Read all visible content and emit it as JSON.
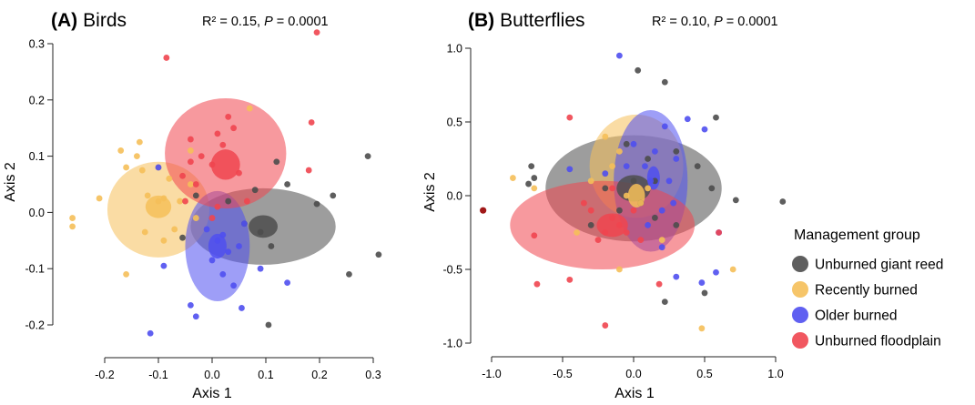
{
  "colors": {
    "Unburned giant reed": "#4d4d4d",
    "Recently burned": "#f5bf59",
    "Older burned": "#4f4ff0",
    "Unburned floodplain": "#f0454f"
  },
  "legend": {
    "title": "Management group",
    "items": [
      "Unburned giant reed",
      "Recently burned",
      "Older burned",
      "Unburned floodplain"
    ]
  },
  "chart_data": [
    {
      "type": "scatter",
      "panel_label": "(A)",
      "title": "Birds",
      "stat_r2": "R² = 0.15,",
      "stat_p_symbol": "P",
      "stat_p_value": " = 0.0001",
      "xlabel": "Axis 1",
      "ylabel": "Axis 2",
      "xlim": [
        -0.25,
        0.32
      ],
      "ylim": [
        -0.22,
        0.34
      ],
      "xticks": [
        -0.2,
        -0.1,
        0.0,
        0.1,
        0.2,
        0.3
      ],
      "xtick_labels": [
        "-0.2",
        "-0.1",
        "0.0",
        "0.1",
        "0.2",
        "0.3"
      ],
      "yticks": [
        -0.2,
        -0.1,
        0.0,
        0.1,
        0.2,
        0.3
      ],
      "ytick_labels": [
        "-0.2",
        "-0.1",
        "0.0",
        "0.1",
        "0.2",
        "0.3"
      ],
      "series": [
        {
          "name": "Unburned giant reed",
          "ellipse": {
            "cx": 0.095,
            "cy": -0.025,
            "rx": 0.135,
            "ry": 0.068
          },
          "centroid": {
            "cx": 0.095,
            "cy": -0.025,
            "rx": 0.027,
            "ry": 0.02
          },
          "points": [
            [
              0.29,
              0.1
            ],
            [
              0.225,
              0.03
            ],
            [
              0.31,
              -0.075
            ],
            [
              0.255,
              -0.11
            ],
            [
              0.105,
              -0.2
            ],
            [
              0.195,
              0.015
            ],
            [
              0.12,
              0.09
            ],
            [
              0.08,
              0.04
            ],
            [
              0.09,
              -0.035
            ],
            [
              0.14,
              0.05
            ],
            [
              0.06,
              -0.02
            ],
            [
              0.03,
              0.02
            ],
            [
              -0.03,
              0.03
            ],
            [
              0.11,
              -0.06
            ],
            [
              -0.055,
              -0.045
            ]
          ]
        },
        {
          "name": "Recently burned",
          "ellipse": {
            "cx": -0.1,
            "cy": 0.005,
            "rx": 0.095,
            "ry": 0.085
          },
          "centroid": {
            "cx": -0.1,
            "cy": 0.01,
            "rx": 0.024,
            "ry": 0.02
          },
          "points": [
            [
              -0.26,
              -0.01
            ],
            [
              -0.26,
              -0.025
            ],
            [
              -0.21,
              0.025
            ],
            [
              -0.17,
              0.11
            ],
            [
              -0.14,
              0.1
            ],
            [
              -0.135,
              0.125
            ],
            [
              -0.16,
              0.08
            ],
            [
              -0.13,
              0.075
            ],
            [
              -0.1,
              0.08
            ],
            [
              -0.08,
              0.06
            ],
            [
              -0.04,
              0.11
            ],
            [
              -0.06,
              0.02
            ],
            [
              -0.12,
              0.03
            ],
            [
              -0.1,
              0.02
            ],
            [
              -0.09,
              0.025
            ],
            [
              -0.16,
              -0.11
            ],
            [
              -0.125,
              -0.035
            ],
            [
              -0.09,
              -0.05
            ],
            [
              -0.07,
              -0.03
            ],
            [
              0.07,
              0.185
            ],
            [
              -0.04,
              0.05
            ],
            [
              -0.03,
              -0.01
            ]
          ]
        },
        {
          "name": "Older burned",
          "ellipse": {
            "cx": 0.01,
            "cy": -0.06,
            "rx": 0.06,
            "ry": 0.098
          },
          "centroid": {
            "cx": 0.01,
            "cy": -0.06,
            "rx": 0.017,
            "ry": 0.022
          },
          "points": [
            [
              -0.115,
              -0.215
            ],
            [
              -0.1,
              0.08
            ],
            [
              -0.09,
              -0.095
            ],
            [
              -0.04,
              -0.165
            ],
            [
              -0.03,
              -0.185
            ],
            [
              0.055,
              -0.17
            ],
            [
              0.04,
              -0.13
            ],
            [
              0.09,
              -0.1
            ],
            [
              0.14,
              -0.125
            ],
            [
              0.05,
              -0.06
            ],
            [
              0.02,
              -0.04
            ],
            [
              0.0,
              -0.085
            ],
            [
              0.02,
              -0.11
            ],
            [
              0.03,
              -0.07
            ],
            [
              0.06,
              -0.02
            ],
            [
              -0.01,
              -0.03
            ],
            [
              0.01,
              -0.05
            ]
          ]
        },
        {
          "name": "Unburned floodplain",
          "ellipse": {
            "cx": 0.025,
            "cy": 0.105,
            "rx": 0.113,
            "ry": 0.098
          },
          "centroid": {
            "cx": 0.025,
            "cy": 0.085,
            "rx": 0.027,
            "ry": 0.027
          },
          "points": [
            [
              -0.085,
              0.275
            ],
            [
              0.195,
              0.32
            ],
            [
              0.185,
              0.16
            ],
            [
              0.18,
              0.075
            ],
            [
              0.03,
              0.17
            ],
            [
              -0.04,
              0.13
            ],
            [
              -0.04,
              0.09
            ],
            [
              -0.03,
              0.05
            ],
            [
              -0.02,
              0.1
            ],
            [
              0.0,
              0.085
            ],
            [
              0.01,
              0.14
            ],
            [
              0.02,
              0.12
            ],
            [
              0.04,
              0.15
            ],
            [
              0.05,
              0.07
            ],
            [
              0.0,
              -0.01
            ],
            [
              -0.05,
              0.02
            ],
            [
              0.01,
              0.01
            ],
            [
              0.065,
              0.02
            ],
            [
              -0.055,
              0.065
            ]
          ]
        }
      ]
    },
    {
      "type": "scatter",
      "panel_label": "(B)",
      "title": "Butterflies",
      "stat_r2": "R² = 0.10,",
      "stat_p_symbol": "P",
      "stat_p_value": " = 0.0001",
      "xlabel": "Axis 1",
      "ylabel": "Axis 2",
      "xlim": [
        -1.1,
        1.1
      ],
      "ylim": [
        -1.0,
        1.0
      ],
      "xticks": [
        -1.0,
        -0.5,
        0.0,
        0.5,
        1.0
      ],
      "xtick_labels": [
        "-1.0",
        "-0.5",
        "0.0",
        "0.5",
        "1.0"
      ],
      "yticks": [
        -1.0,
        -0.5,
        0.0,
        0.5,
        1.0
      ],
      "ytick_labels": [
        "-1.0",
        "-0.5",
        "0.0",
        "0.5",
        "1.0"
      ],
      "series": [
        {
          "name": "Unburned giant reed",
          "ellipse": {
            "cx": 0.0,
            "cy": 0.05,
            "rx": 0.62,
            "ry": 0.36
          },
          "centroid": {
            "cx": 0.0,
            "cy": 0.05,
            "rx": 0.12,
            "ry": 0.09
          },
          "points": [
            [
              0.03,
              0.85
            ],
            [
              0.22,
              0.77
            ],
            [
              -0.72,
              0.2
            ],
            [
              -0.74,
              0.08
            ],
            [
              -0.7,
              0.12
            ],
            [
              0.58,
              0.53
            ],
            [
              0.72,
              -0.03
            ],
            [
              1.05,
              -0.04
            ],
            [
              0.5,
              -0.66
            ],
            [
              0.22,
              -0.72
            ],
            [
              0.55,
              0.05
            ],
            [
              0.45,
              0.2
            ],
            [
              -0.05,
              0.35
            ],
            [
              0.1,
              0.25
            ],
            [
              -0.1,
              -0.1
            ],
            [
              0.05,
              -0.05
            ],
            [
              0.0,
              0.1
            ],
            [
              -0.2,
              0.05
            ],
            [
              0.15,
              -0.15
            ],
            [
              0.3,
              -0.2
            ],
            [
              -0.3,
              -0.2
            ],
            [
              0.15,
              0.1
            ],
            [
              0.3,
              0.3
            ]
          ]
        },
        {
          "name": "Recently burned",
          "ellipse": {
            "cx": 0.02,
            "cy": 0.2,
            "rx": 0.33,
            "ry": 0.35
          },
          "centroid": {
            "cx": 0.02,
            "cy": 0.0,
            "rx": 0.06,
            "ry": 0.08
          },
          "points": [
            [
              -0.85,
              0.12
            ],
            [
              -0.7,
              0.05
            ],
            [
              0.48,
              -0.9
            ],
            [
              0.7,
              -0.5
            ],
            [
              -0.1,
              -0.5
            ],
            [
              -0.2,
              0.4
            ],
            [
              -0.15,
              0.2
            ],
            [
              -0.4,
              -0.25
            ],
            [
              -0.3,
              0.1
            ],
            [
              0.1,
              0.05
            ],
            [
              0.05,
              -0.05
            ],
            [
              -0.05,
              0.0
            ],
            [
              0.2,
              -0.3
            ],
            [
              -0.1,
              0.3
            ]
          ]
        },
        {
          "name": "Older burned",
          "ellipse": {
            "cx": 0.12,
            "cy": 0.1,
            "rx": 0.26,
            "ry": 0.48
          },
          "centroid": {
            "cx": 0.14,
            "cy": 0.12,
            "rx": 0.045,
            "ry": 0.08
          },
          "points": [
            [
              -0.1,
              0.95
            ],
            [
              0.38,
              0.52
            ],
            [
              0.5,
              0.45
            ],
            [
              0.22,
              0.47
            ],
            [
              0.3,
              0.25
            ],
            [
              0.6,
              -0.25
            ],
            [
              0.58,
              -0.52
            ],
            [
              0.48,
              -0.59
            ],
            [
              0.3,
              -0.55
            ],
            [
              0.2,
              -0.35
            ],
            [
              0.08,
              0.2
            ],
            [
              0.12,
              0.1
            ],
            [
              0.0,
              0.35
            ],
            [
              0.15,
              0.3
            ],
            [
              -0.45,
              0.18
            ],
            [
              -0.2,
              0.15
            ],
            [
              0.25,
              0.1
            ],
            [
              -0.05,
              0.2
            ],
            [
              0.1,
              -0.2
            ],
            [
              0.28,
              -0.05
            ],
            [
              0.2,
              -0.1
            ]
          ]
        },
        {
          "name": "Unburned floodplain",
          "ellipse": {
            "cx": -0.22,
            "cy": -0.2,
            "rx": 0.65,
            "ry": 0.3
          },
          "centroid": {
            "cx": -0.15,
            "cy": -0.2,
            "rx": 0.11,
            "ry": 0.08
          },
          "points": [
            [
              -0.7,
              -0.27
            ],
            [
              -0.68,
              -0.6
            ],
            [
              -0.45,
              0.53
            ],
            [
              -0.45,
              -0.57
            ],
            [
              -0.2,
              -0.88
            ],
            [
              0.18,
              -0.6
            ],
            [
              -0.3,
              -0.1
            ],
            [
              -0.2,
              -0.25
            ],
            [
              -0.1,
              -0.2
            ],
            [
              0.0,
              -0.1
            ],
            [
              -0.15,
              0.05
            ],
            [
              -0.35,
              -0.05
            ],
            [
              0.05,
              -0.3
            ],
            [
              0.6,
              -0.25
            ],
            [
              -0.05,
              -0.25
            ],
            [
              -0.25,
              -0.3
            ],
            [
              -0.15,
              -0.15
            ]
          ]
        }
      ],
      "extra_points": [
        {
          "x": -1.06,
          "y": -0.1,
          "color": "#a01818"
        }
      ]
    }
  ]
}
